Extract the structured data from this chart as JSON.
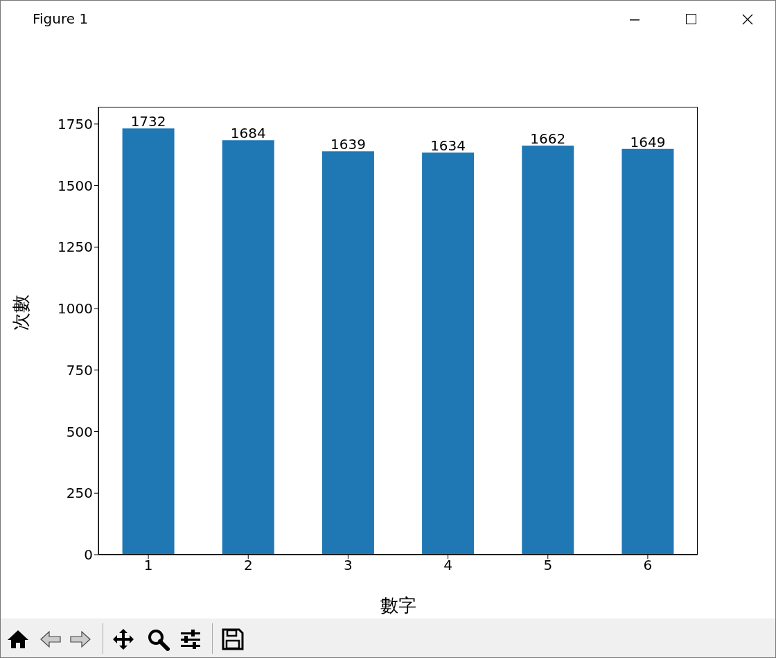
{
  "chart_data": {
    "type": "bar",
    "xlabel": "數字",
    "ylabel": "次數",
    "categories": [
      "1",
      "2",
      "3",
      "4",
      "5",
      "6"
    ],
    "values": [
      1732,
      1684,
      1639,
      1634,
      1662,
      1649
    ],
    "color": "#1f77b4",
    "ylim": [
      0,
      1820
    ],
    "yticks": [
      0,
      250,
      500,
      750,
      1000,
      1250,
      1500,
      1750
    ],
    "data_labels": true,
    "annotations": [
      "Figure 1"
    ]
  }
}
